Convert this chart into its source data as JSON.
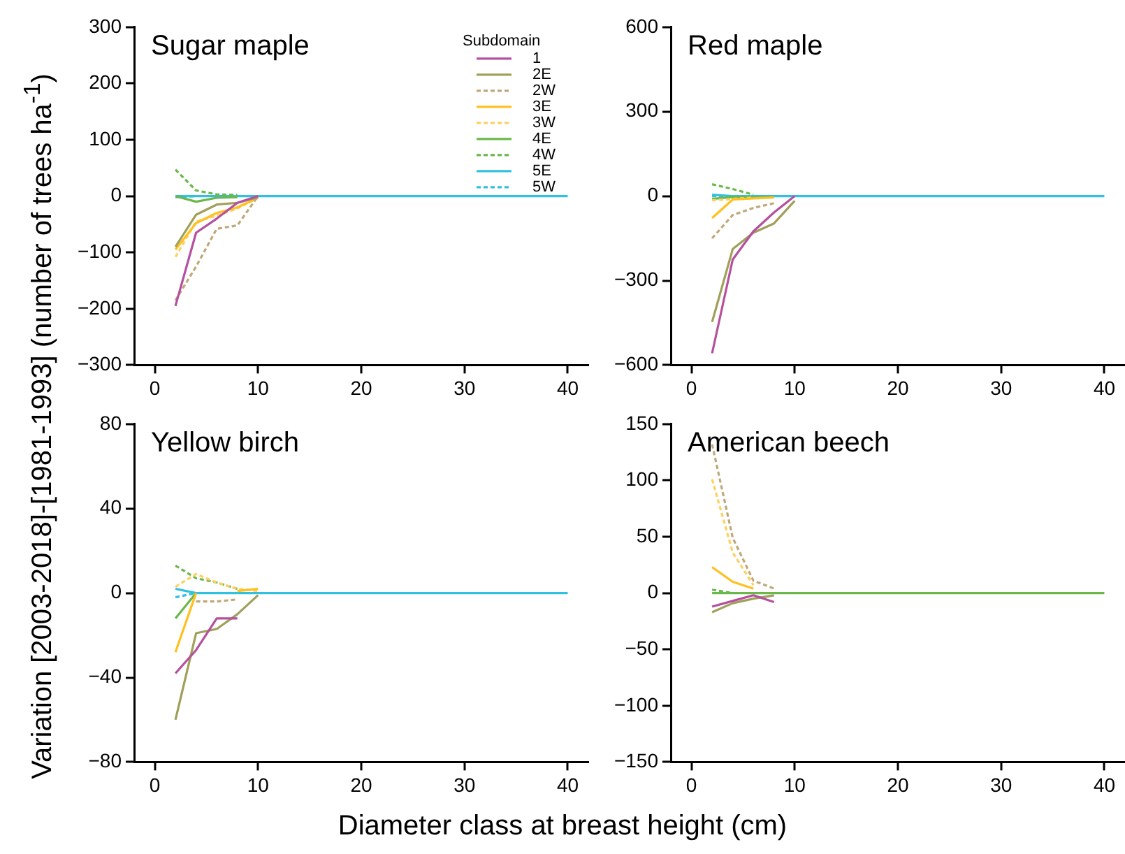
{
  "chart_data": [
    {
      "type": "line",
      "title": "Sugar maple",
      "ylabel": "Variation [2003-2018]-[1981-1993] (number of trees ha$^{-1}$)",
      "legend": "top right",
      "legend_title": "Subdomain",
      "marker": "none",
      "x": [
        2,
        4,
        6,
        8,
        10,
        40
      ],
      "xlim": [
        -2,
        42
      ],
      "xticks": [
        0,
        10,
        20,
        30,
        40
      ],
      "ylim": [
        -300,
        300
      ],
      "yticks": [
        -300,
        -200,
        -100,
        0,
        100,
        200,
        300
      ],
      "series": [
        {
          "name": "1",
          "color": "#b5509e",
          "line_style": "solid",
          "values": [
            -195,
            -65,
            -40,
            -12,
            0,
            null
          ]
        },
        {
          "name": "2E",
          "color": "#a0a05a",
          "line_style": "solid",
          "values": [
            -90,
            -33,
            -15,
            -12,
            -2,
            null
          ]
        },
        {
          "name": "2W",
          "color": "#c0a878",
          "line_style": "dashed",
          "values": [
            -185,
            -125,
            -58,
            -52,
            0,
            null
          ]
        },
        {
          "name": "3E",
          "color": "#ffc020",
          "line_style": "solid",
          "values": [
            -95,
            -48,
            -30,
            -20,
            -3,
            null
          ]
        },
        {
          "name": "3W",
          "color": "#ffd060",
          "line_style": "dashed",
          "values": [
            -108,
            -45,
            -35,
            -22,
            -3,
            null
          ]
        },
        {
          "name": "4E",
          "color": "#6ab84a",
          "line_style": "solid",
          "values": [
            0,
            -10,
            -3,
            -2,
            null,
            null
          ]
        },
        {
          "name": "4W",
          "color": "#6ab84a",
          "line_style": "dashed",
          "values": [
            47,
            10,
            3,
            2,
            null,
            null
          ]
        },
        {
          "name": "5E",
          "color": "#30c0e0",
          "line_style": "solid",
          "values": [
            0,
            0,
            0,
            0,
            0,
            0
          ]
        },
        {
          "name": "5W",
          "color": "#30c0e0",
          "line_style": "dashed",
          "values": [
            -2,
            0,
            null,
            null,
            null,
            null
          ]
        }
      ]
    },
    {
      "type": "line",
      "title": "Red maple",
      "marker": "none",
      "x": [
        2,
        4,
        6,
        8,
        10,
        40
      ],
      "xlim": [
        -2,
        42
      ],
      "xticks": [
        0,
        10,
        20,
        30,
        40
      ],
      "ylim": [
        -600,
        600
      ],
      "yticks": [
        -600,
        -300,
        0,
        300,
        600
      ],
      "series": [
        {
          "color": "#b5509e",
          "line_style": "solid",
          "values": [
            -558,
            -225,
            -125,
            -58,
            0,
            null
          ]
        },
        {
          "color": "#a0a05a",
          "line_style": "solid",
          "values": [
            -447,
            -188,
            -130,
            -97,
            -17,
            null
          ]
        },
        {
          "color": "#c0a878",
          "line_style": "dashed",
          "values": [
            -150,
            -67,
            -42,
            -25,
            null,
            null
          ]
        },
        {
          "color": "#ffc020",
          "line_style": "solid",
          "values": [
            -78,
            -12,
            -8,
            -5,
            null,
            null
          ]
        },
        {
          "color": "#ffd060",
          "line_style": "dashed",
          "values": [
            -15,
            -10,
            -5,
            null,
            null,
            null
          ]
        },
        {
          "color": "#6ab84a",
          "line_style": "solid",
          "values": [
            -10,
            -3,
            -5,
            -3,
            null,
            null
          ]
        },
        {
          "color": "#6ab84a",
          "line_style": "dashed",
          "values": [
            42,
            25,
            5,
            null,
            null,
            null
          ]
        },
        {
          "color": "#30c0e0",
          "line_style": "solid",
          "values": [
            5,
            0,
            0,
            0,
            0,
            0
          ]
        },
        {
          "color": "#30c0e0",
          "line_style": "dashed",
          "values": [
            0,
            0,
            null,
            null,
            null,
            null
          ]
        }
      ]
    },
    {
      "type": "line",
      "title": "Yellow birch",
      "xlabel": "Diameter class at breast height (cm)",
      "marker": "none",
      "x": [
        2,
        4,
        6,
        8,
        10,
        40
      ],
      "xlim": [
        -2,
        42
      ],
      "xticks": [
        0,
        10,
        20,
        30,
        40
      ],
      "ylim": [
        -80,
        80
      ],
      "yticks": [
        -80,
        -40,
        0,
        40,
        80
      ],
      "series": [
        {
          "color": "#b5509e",
          "line_style": "solid",
          "values": [
            -38,
            -27,
            -12,
            -12,
            null,
            null
          ]
        },
        {
          "color": "#a0a05a",
          "line_style": "solid",
          "values": [
            -60,
            -19,
            -17,
            -10,
            -1,
            null
          ]
        },
        {
          "color": "#c0a878",
          "line_style": "dashed",
          "values": [
            null,
            -4,
            -4,
            -3,
            null,
            null
          ]
        },
        {
          "color": "#ffc020",
          "line_style": "solid",
          "values": [
            -28,
            0,
            null,
            1,
            2,
            null
          ]
        },
        {
          "color": "#ffd060",
          "line_style": "dashed",
          "values": [
            3,
            9,
            5,
            2,
            1,
            null
          ]
        },
        {
          "color": "#6ab84a",
          "line_style": "solid",
          "values": [
            -12,
            0,
            null,
            null,
            null,
            null
          ]
        },
        {
          "color": "#6ab84a",
          "line_style": "dashed",
          "values": [
            13,
            7,
            5,
            2,
            null,
            null
          ]
        },
        {
          "color": "#30c0e0",
          "line_style": "solid",
          "values": [
            2,
            0,
            0,
            0,
            0,
            0
          ]
        },
        {
          "color": "#30c0e0",
          "line_style": "dashed",
          "values": [
            -2,
            0,
            null,
            null,
            null,
            null
          ]
        }
      ]
    },
    {
      "type": "line",
      "title": "American beech",
      "marker": "none",
      "x": [
        2,
        4,
        6,
        8,
        10,
        40
      ],
      "xlim": [
        -2,
        42
      ],
      "xticks": [
        0,
        10,
        20,
        30,
        40
      ],
      "ylim": [
        -150,
        150
      ],
      "yticks": [
        -150,
        -100,
        -50,
        0,
        50,
        100,
        150
      ],
      "series": [
        {
          "color": "#b5509e",
          "line_style": "solid",
          "values": [
            -12,
            -7,
            -2,
            -8,
            null,
            null
          ]
        },
        {
          "color": "#a0a05a",
          "line_style": "solid",
          "values": [
            -17,
            -9,
            -5,
            -2,
            null,
            null
          ]
        },
        {
          "color": "#c0a878",
          "line_style": "dashed",
          "values": [
            132,
            49,
            11,
            4,
            null,
            null
          ]
        },
        {
          "color": "#ffc020",
          "line_style": "solid",
          "values": [
            23,
            10,
            4,
            null,
            null,
            null
          ]
        },
        {
          "color": "#ffd060",
          "line_style": "dashed",
          "values": [
            101,
            36,
            7,
            null,
            null,
            null
          ]
        },
        {
          "color": "#6ab84a",
          "line_style": "solid",
          "values": [
            0,
            0,
            0,
            0,
            0,
            0
          ]
        },
        {
          "color": "#6ab84a",
          "line_style": "dashed",
          "values": [
            3,
            0,
            null,
            null,
            null,
            null
          ]
        },
        {
          "color": "#30c0e0",
          "line_style": "solid",
          "values": [
            null,
            null,
            null,
            null,
            null,
            null
          ]
        },
        {
          "color": "#30c0e0",
          "line_style": "dashed",
          "values": [
            null,
            null,
            null,
            null,
            null,
            null
          ]
        }
      ]
    }
  ]
}
